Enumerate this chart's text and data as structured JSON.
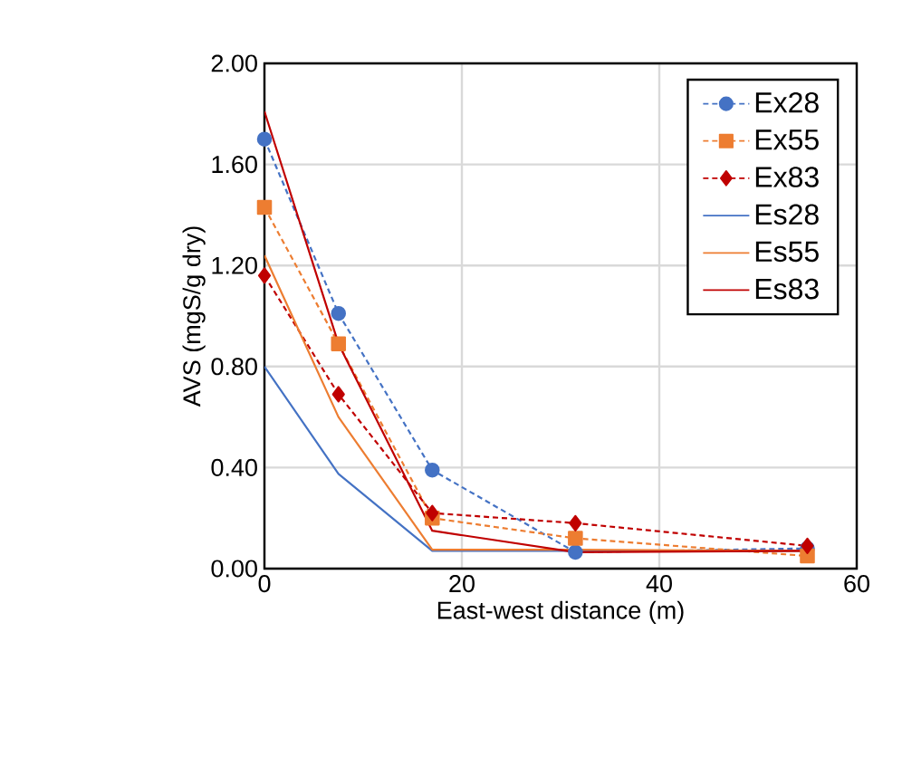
{
  "chart_data": {
    "type": "line",
    "xlabel": "East-west distance (m)",
    "ylabel": "AVS (mgS/g dry)",
    "xlim": [
      0,
      60
    ],
    "xticks": [
      0,
      20,
      40,
      60
    ],
    "ylim": [
      0,
      2
    ],
    "yticks": [
      {
        "value": 0,
        "label": "0.00"
      },
      {
        "value": 0.4,
        "label": "0.40"
      },
      {
        "value": 0.8,
        "label": "0.80"
      },
      {
        "value": 1.2,
        "label": "1.20"
      },
      {
        "value": 1.6,
        "label": "1.60"
      },
      {
        "value": 2,
        "label": "2.00"
      }
    ],
    "grid": true,
    "legend": "top right",
    "x": [
      0,
      7.5,
      17,
      31.5,
      55
    ],
    "series": [
      {
        "name": "Ex28",
        "color": "#4472c4",
        "marker": "circle",
        "line_style": "dashed",
        "values": [
          1.7,
          1.01,
          0.39,
          0.065,
          0.08
        ]
      },
      {
        "name": "Ex55",
        "color": "#ed7d31",
        "marker": "square",
        "line_style": "dashed",
        "values": [
          1.43,
          0.89,
          0.2,
          0.12,
          0.05
        ]
      },
      {
        "name": "Ex83",
        "color": "#c00000",
        "marker": "diamond",
        "line_style": "dashed",
        "values": [
          1.16,
          0.69,
          0.22,
          0.18,
          0.09
        ]
      },
      {
        "name": "Es28",
        "color": "#4472c4",
        "marker": "none",
        "line_style": "solid",
        "values": [
          0.8,
          0.375,
          0.07,
          0.07,
          0.07
        ]
      },
      {
        "name": "Es55",
        "color": "#ed7d31",
        "marker": "none",
        "line_style": "solid",
        "values": [
          1.24,
          0.6,
          0.075,
          0.075,
          0.07
        ]
      },
      {
        "name": "Es83",
        "color": "#c00000",
        "marker": "none",
        "line_style": "solid",
        "values": [
          1.81,
          0.89,
          0.15,
          0.065,
          0.07
        ]
      }
    ]
  }
}
